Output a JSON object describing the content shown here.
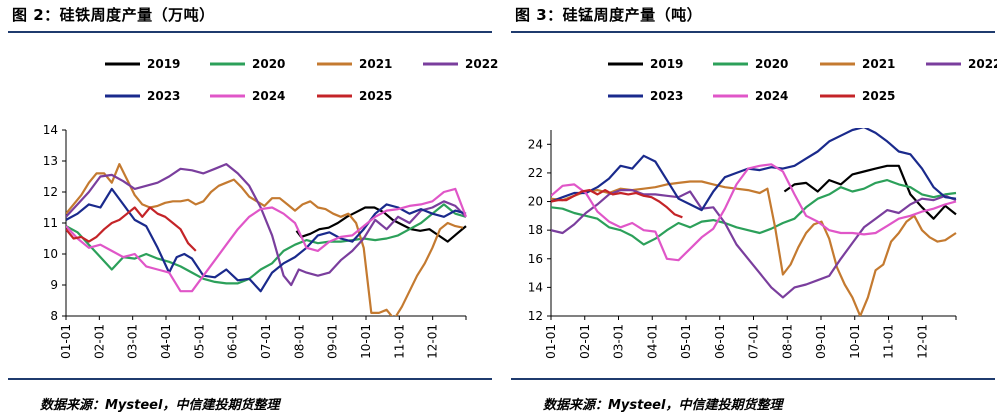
{
  "charts": [
    {
      "id": "left",
      "title": "图 2：硅铁周度产量（万吨）",
      "source": "数据来源：Mysteel，中信建投期货整理"
    },
    {
      "id": "right",
      "title": "图 3：硅锰周度产量（吨）",
      "source": "数据来源：Mysteel，中信建投期货整理"
    }
  ],
  "chart_data": [
    {
      "type": "line",
      "title": "图 2：硅铁周度产量（万吨）",
      "xlabel": "",
      "ylabel": "",
      "x_ticks": [
        "01-01",
        "02-01",
        "03-01",
        "04-01",
        "05-01",
        "06-01",
        "07-01",
        "08-01",
        "09-01",
        "10-01",
        "11-01",
        "12-01"
      ],
      "ylim": [
        8,
        14
      ],
      "y_ticks": [
        8,
        9,
        10,
        11,
        12,
        13,
        14
      ],
      "grid": false,
      "legend_position": "top",
      "series": [
        {
          "name": "2019",
          "color": "#000000",
          "x": [
            30.2,
            30.8,
            32.0,
            33.2,
            34.4,
            35.6,
            36.8,
            38.0,
            39.2,
            40.4,
            41.6,
            42.8,
            44.0,
            45.2,
            46.4,
            47.6,
            48.8,
            50.0,
            51.2,
            52.4
          ],
          "values": [
            10.75,
            10.55,
            10.65,
            10.8,
            10.85,
            11.0,
            11.2,
            11.35,
            11.5,
            11.5,
            11.35,
            11.1,
            10.95,
            10.8,
            10.75,
            10.8,
            10.6,
            10.4,
            10.65,
            10.9
          ]
        },
        {
          "name": "2020",
          "color": "#2ca05a",
          "x": [
            0,
            1.5,
            3,
            4.5,
            6,
            7.5,
            9,
            10.5,
            12,
            13.5,
            15,
            16.5,
            18,
            19.5,
            21,
            22.5,
            24,
            25.5,
            27,
            28.5,
            30,
            31.5,
            33,
            34.5,
            36,
            37.5,
            39,
            40.5,
            42,
            43.5,
            45,
            46.5,
            48,
            49.5,
            51,
            52.4
          ],
          "values": [
            10.9,
            10.7,
            10.3,
            9.9,
            9.5,
            9.9,
            9.85,
            10.0,
            9.85,
            9.75,
            9.6,
            9.4,
            9.2,
            9.1,
            9.05,
            9.05,
            9.2,
            9.5,
            9.7,
            10.1,
            10.3,
            10.45,
            10.35,
            10.4,
            10.4,
            10.45,
            10.5,
            10.45,
            10.5,
            10.6,
            10.8,
            11.0,
            11.3,
            11.6,
            11.3,
            11.2
          ]
        },
        {
          "name": "2021",
          "color": "#c47a30",
          "x": [
            0,
            1,
            2,
            3,
            4,
            5,
            6,
            7,
            8,
            9,
            10,
            11,
            12,
            13,
            14,
            15,
            16,
            17,
            18,
            19,
            20,
            21,
            22,
            23,
            24,
            25,
            26,
            27,
            28,
            29,
            30,
            31,
            32,
            33,
            34,
            35,
            36,
            37,
            38,
            39,
            40,
            41,
            42,
            43,
            44,
            45,
            46,
            47,
            48,
            49,
            50,
            51,
            52
          ],
          "values": [
            11.3,
            11.6,
            11.9,
            12.3,
            12.6,
            12.6,
            12.3,
            12.9,
            12.4,
            11.9,
            11.6,
            11.5,
            11.55,
            11.65,
            11.7,
            11.7,
            11.75,
            11.6,
            11.7,
            12.0,
            12.2,
            12.3,
            12.4,
            12.15,
            11.85,
            11.7,
            11.55,
            11.8,
            11.8,
            11.6,
            11.4,
            11.6,
            11.7,
            11.5,
            11.45,
            11.3,
            11.2,
            11.3,
            11.0,
            10.2,
            8.1,
            8.1,
            8.2,
            7.9,
            8.3,
            8.8,
            9.3,
            9.7,
            10.2,
            10.8,
            11.0,
            10.9,
            10.85
          ]
        },
        {
          "name": "2022",
          "color": "#7a3e9d",
          "x": [
            0,
            1.5,
            3,
            4.5,
            6,
            7.5,
            9,
            10.5,
            12,
            13.5,
            15,
            16.5,
            18,
            19.5,
            21,
            22.5,
            24,
            25.5,
            27,
            28.5,
            29.5,
            30.5,
            31.5,
            33,
            34.5,
            36,
            37.5,
            39,
            40.5,
            42,
            43.5,
            45,
            46.5,
            48,
            49.5,
            51,
            52.4
          ],
          "values": [
            11.2,
            11.6,
            12.0,
            12.5,
            12.55,
            12.35,
            12.1,
            12.2,
            12.3,
            12.5,
            12.75,
            12.7,
            12.6,
            12.75,
            12.9,
            12.6,
            12.2,
            11.5,
            10.6,
            9.3,
            9.0,
            9.5,
            9.4,
            9.3,
            9.4,
            9.8,
            10.1,
            10.5,
            11.1,
            10.8,
            11.2,
            11.0,
            11.4,
            11.5,
            11.7,
            11.55,
            11.2
          ]
        },
        {
          "name": "2023",
          "color": "#1a2a8c",
          "x": [
            0,
            1.5,
            3,
            4.5,
            6,
            7.5,
            9,
            10.5,
            12,
            13.5,
            14.5,
            15.5,
            16.5,
            18,
            19.5,
            21,
            22.5,
            24,
            25.5,
            27,
            28.5,
            30,
            31.5,
            33,
            34.5,
            36,
            37.5,
            39,
            40.5,
            42,
            43.5,
            45,
            46.5,
            48,
            49.5,
            51,
            52.4
          ],
          "values": [
            11.1,
            11.3,
            11.6,
            11.5,
            12.1,
            11.6,
            11.1,
            10.9,
            10.2,
            9.4,
            9.9,
            10.0,
            9.85,
            9.3,
            9.25,
            9.5,
            9.15,
            9.2,
            8.8,
            9.4,
            9.7,
            9.9,
            10.2,
            10.6,
            10.7,
            10.5,
            10.4,
            10.8,
            11.3,
            11.6,
            11.5,
            11.3,
            11.45,
            11.3,
            11.2,
            11.4,
            11.3
          ]
        },
        {
          "name": "2024",
          "color": "#e056c8",
          "x": [
            0,
            1.5,
            3,
            4.5,
            6,
            7.5,
            9,
            10.5,
            12,
            13.5,
            15,
            16.5,
            18,
            19.5,
            21,
            22.5,
            24,
            25.5,
            27,
            28.5,
            30,
            31.5,
            33,
            34.5,
            36,
            37.5,
            39,
            40.5,
            42,
            43.5,
            45,
            46.5,
            48,
            49.5,
            51,
            52.4
          ],
          "values": [
            10.9,
            10.5,
            10.2,
            10.3,
            10.1,
            9.9,
            10.0,
            9.6,
            9.5,
            9.4,
            8.8,
            8.8,
            9.3,
            9.8,
            10.3,
            10.8,
            11.2,
            11.45,
            11.5,
            11.3,
            11.0,
            10.2,
            10.1,
            10.4,
            10.55,
            10.6,
            10.9,
            11.2,
            11.4,
            11.45,
            11.55,
            11.6,
            11.7,
            12.0,
            12.1,
            11.2
          ]
        },
        {
          "name": "2025",
          "color": "#c42428",
          "x": [
            0,
            1,
            2,
            3,
            4,
            5,
            6,
            7,
            8,
            9,
            10,
            11,
            12,
            13,
            14,
            15,
            16,
            17
          ],
          "values": [
            10.8,
            10.5,
            10.55,
            10.4,
            10.55,
            10.8,
            11.0,
            11.1,
            11.3,
            11.5,
            11.2,
            11.5,
            11.3,
            11.2,
            11.0,
            10.8,
            10.35,
            10.1
          ]
        }
      ]
    },
    {
      "type": "line",
      "title": "图 3：硅锰周度产量（吨）",
      "xlabel": "",
      "ylabel": "",
      "x_ticks": [
        "01-01",
        "02-01",
        "03-01",
        "04-01",
        "05-01",
        "06-01",
        "07-01",
        "08-01",
        "09-01",
        "10-01",
        "11-01",
        "12-01"
      ],
      "ylim": [
        12,
        25
      ],
      "y_ticks": [
        12,
        14,
        16,
        18,
        20,
        22,
        24
      ],
      "grid": false,
      "legend_position": "top",
      "series": [
        {
          "name": "2019",
          "color": "#000000",
          "x": [
            30.2,
            31.5,
            33,
            34.5,
            36,
            37.5,
            39,
            40.5,
            42,
            43.5,
            45,
            46.5,
            48,
            49.5,
            51,
            52.4
          ],
          "values": [
            20.7,
            21.2,
            21.3,
            20.7,
            21.5,
            21.2,
            21.9,
            22.1,
            22.3,
            22.5,
            22.5,
            20.5,
            19.6,
            18.8,
            19.7,
            19.1
          ]
        },
        {
          "name": "2020",
          "color": "#2ca05a",
          "x": [
            0,
            1.5,
            3,
            4.5,
            6,
            7.5,
            9,
            10.5,
            12,
            13.5,
            15,
            16.5,
            18,
            19.5,
            21,
            22.5,
            24,
            25.5,
            27,
            28.5,
            30,
            31.5,
            33,
            34.5,
            36,
            37.5,
            39,
            40.5,
            42,
            43.5,
            45,
            46.5,
            48,
            49.5,
            51,
            52.4
          ],
          "values": [
            19.6,
            19.5,
            19.2,
            19.0,
            18.8,
            18.2,
            18.0,
            17.6,
            17.0,
            17.4,
            18.0,
            18.5,
            18.2,
            18.6,
            18.7,
            18.5,
            18.2,
            18.0,
            17.8,
            18.1,
            18.5,
            18.8,
            19.6,
            20.2,
            20.5,
            21.0,
            20.7,
            20.9,
            21.3,
            21.5,
            21.2,
            21.0,
            20.5,
            20.3,
            20.5,
            20.6
          ]
        },
        {
          "name": "2021",
          "color": "#c47a30",
          "x": [
            0,
            1.5,
            3,
            4.5,
            6,
            7.5,
            9,
            10.5,
            12,
            13.5,
            15,
            16.5,
            18,
            19.5,
            21,
            22.5,
            24,
            25.5,
            27,
            28,
            29,
            30,
            31,
            32,
            33,
            34,
            35,
            36,
            37,
            38,
            39,
            40,
            41,
            42,
            43,
            44,
            45,
            46,
            47,
            48,
            49,
            50,
            51,
            52.4
          ],
          "values": [
            20.2,
            20.1,
            20.4,
            20.7,
            20.8,
            20.6,
            20.9,
            20.8,
            20.9,
            21.0,
            21.2,
            21.3,
            21.4,
            21.4,
            21.2,
            21.0,
            20.9,
            20.8,
            20.6,
            20.9,
            18.2,
            14.9,
            15.6,
            16.8,
            17.8,
            18.4,
            18.6,
            17.4,
            15.4,
            14.2,
            13.3,
            12.0,
            13.3,
            15.2,
            15.6,
            17.2,
            17.8,
            18.6,
            19.0,
            18.0,
            17.5,
            17.2,
            17.3,
            17.8
          ]
        },
        {
          "name": "2022",
          "color": "#7a3e9d",
          "x": [
            0,
            1.5,
            3,
            4.5,
            6,
            7.5,
            9,
            10.5,
            12,
            13.5,
            15,
            16.5,
            18,
            19.5,
            21,
            22.5,
            24,
            25.5,
            27,
            28.5,
            30,
            31.5,
            33,
            34.5,
            36,
            37.5,
            39,
            40.5,
            42,
            43.5,
            45,
            46.5,
            48,
            49.5,
            51,
            52.4
          ],
          "values": [
            18.0,
            17.8,
            18.4,
            19.2,
            19.8,
            20.5,
            20.8,
            20.8,
            20.5,
            20.5,
            20.4,
            20.3,
            20.7,
            19.5,
            19.6,
            18.5,
            17.0,
            16.0,
            15.0,
            14.0,
            13.3,
            14.0,
            14.2,
            14.5,
            14.8,
            16.0,
            17.1,
            18.2,
            18.8,
            19.4,
            19.2,
            19.8,
            20.2,
            20.1,
            20.4,
            20.1
          ]
        },
        {
          "name": "2023",
          "color": "#1a2a8c",
          "x": [
            0,
            1.5,
            3,
            4.5,
            6,
            7.5,
            9,
            10.5,
            12,
            13.5,
            15,
            16.5,
            18,
            19.5,
            21,
            22.5,
            24,
            25.5,
            27,
            28.5,
            30,
            31.5,
            33,
            34.5,
            36,
            37.5,
            39,
            40.5,
            42,
            43.5,
            45,
            46.5,
            48,
            49.5,
            51,
            52.4
          ],
          "values": [
            20.0,
            20.3,
            20.6,
            20.6,
            21.0,
            21.6,
            22.5,
            22.3,
            23.2,
            22.8,
            21.5,
            20.2,
            19.8,
            19.4,
            20.7,
            21.7,
            22.0,
            22.3,
            22.2,
            22.4,
            22.3,
            22.5,
            23.0,
            23.5,
            24.2,
            24.6,
            25.0,
            25.2,
            24.8,
            24.2,
            23.5,
            23.3,
            22.3,
            21.0,
            20.3,
            20.2
          ]
        },
        {
          "name": "2024",
          "color": "#e056c8",
          "x": [
            0,
            1.5,
            3,
            4.5,
            6,
            7.5,
            9,
            10.5,
            12,
            13.5,
            15,
            16.5,
            18,
            19.5,
            21,
            22.5,
            24,
            25.5,
            27,
            28.5,
            30,
            31.5,
            33,
            34.5,
            36,
            37.5,
            39,
            40.5,
            42,
            43.5,
            45,
            46.5,
            48,
            49.5,
            51,
            52.4
          ],
          "values": [
            20.4,
            21.1,
            21.2,
            20.6,
            19.3,
            18.6,
            18.2,
            18.5,
            18.0,
            17.9,
            16.0,
            15.9,
            16.7,
            17.5,
            18.1,
            19.5,
            21.2,
            22.3,
            22.5,
            22.6,
            22.1,
            20.5,
            19.0,
            18.6,
            18.0,
            17.8,
            17.8,
            17.7,
            17.8,
            18.3,
            18.8,
            19.0,
            19.3,
            19.5,
            19.8,
            20.0
          ]
        },
        {
          "name": "2025",
          "color": "#c42428",
          "x": [
            0,
            1,
            2,
            3,
            4,
            5,
            6,
            7,
            8,
            9,
            10,
            11,
            12,
            13,
            14,
            15,
            16,
            17
          ],
          "values": [
            20.0,
            20.1,
            20.1,
            20.4,
            20.7,
            20.8,
            20.5,
            20.8,
            20.5,
            20.6,
            20.5,
            20.6,
            20.4,
            20.3,
            20.0,
            19.6,
            19.1,
            18.9
          ]
        }
      ]
    }
  ]
}
